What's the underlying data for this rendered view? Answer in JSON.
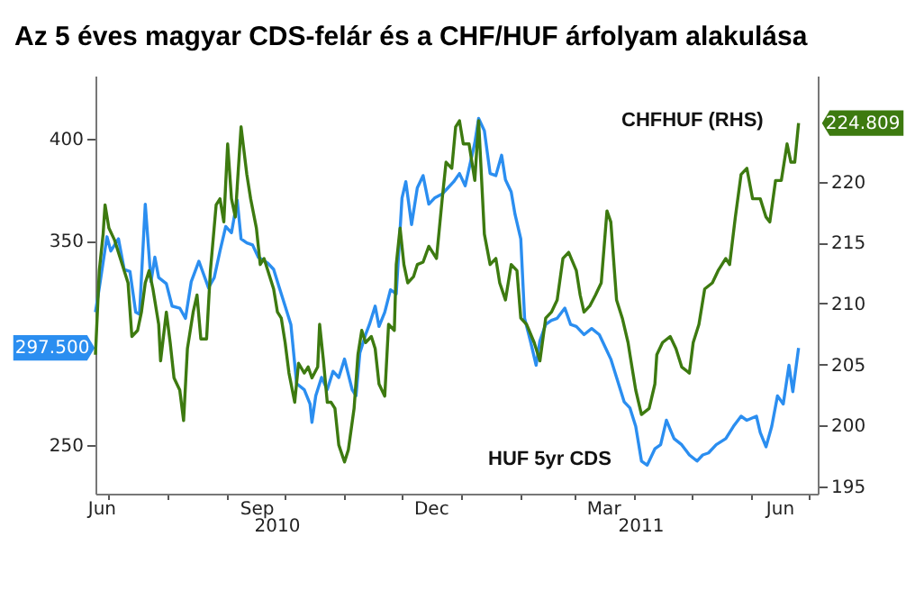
{
  "chart_data": {
    "type": "line",
    "title": "Az 5 éves magyar CDS-felár és a CHF/HUF árfolyam alakulása",
    "annotations": [
      "2010",
      "2011",
      "297.500",
      "224.809"
    ],
    "xlim": [
      "2010-06-24",
      "2011-07-06"
    ],
    "xticks": [
      {
        "value": "2010-06-27",
        "label": "Jun"
      },
      {
        "value": "2010-07-01",
        "label": null
      },
      {
        "value": "2010-08-01",
        "label": null
      },
      {
        "value": "2010-09-01",
        "label": null
      },
      {
        "value": "2010-09-16",
        "label": "Sep"
      },
      {
        "value": "2010-10-01",
        "label": null
      },
      {
        "value": "2010-11-01",
        "label": null
      },
      {
        "value": "2010-12-01",
        "label": null
      },
      {
        "value": "2010-12-16",
        "label": "Dec"
      },
      {
        "value": "2011-01-01",
        "label": null
      },
      {
        "value": "2011-02-01",
        "label": null
      },
      {
        "value": "2011-03-01",
        "label": null
      },
      {
        "value": "2011-03-16",
        "label": "Mar"
      },
      {
        "value": "2011-04-01",
        "label": null
      },
      {
        "value": "2011-05-01",
        "label": null
      },
      {
        "value": "2011-06-01",
        "label": null
      },
      {
        "value": "2011-06-16",
        "label": "Jun"
      },
      {
        "value": "2011-07-01",
        "label": null
      }
    ],
    "ylim": [
      226,
      431
    ],
    "yticks": [
      250,
      350,
      400
    ],
    "y2lim": [
      194.4,
      228.7
    ],
    "y2ticks": [
      195,
      200,
      205,
      210,
      215,
      220
    ],
    "series": [
      {
        "name": "HUF 5yr CDS",
        "color": "#2b8ef0",
        "axis": "y",
        "x": [
          "2010-06-24",
          "2010-06-26",
          "2010-06-30",
          "2010-07-02",
          "2010-07-06",
          "2010-07-09",
          "2010-07-12",
          "2010-07-15",
          "2010-07-17",
          "2010-07-20",
          "2010-07-23",
          "2010-07-25",
          "2010-07-27",
          "2010-07-31",
          "2010-08-03",
          "2010-08-07",
          "2010-08-10",
          "2010-08-13",
          "2010-08-17",
          "2010-08-22",
          "2010-08-25",
          "2010-08-28",
          "2010-08-31",
          "2010-09-03",
          "2010-09-06",
          "2010-09-08",
          "2010-09-11",
          "2010-09-14",
          "2010-09-17",
          "2010-09-22",
          "2010-09-25",
          "2010-09-28",
          "2010-10-01",
          "2010-10-04",
          "2010-10-07",
          "2010-10-11",
          "2010-10-14",
          "2010-10-15",
          "2010-10-17",
          "2010-10-20",
          "2010-10-23",
          "2010-10-26",
          "2010-10-29",
          "2010-11-01",
          "2010-11-05",
          "2010-11-07",
          "2010-11-09",
          "2010-11-12",
          "2010-11-14",
          "2010-11-17",
          "2010-11-19",
          "2010-11-22",
          "2010-11-25",
          "2010-11-28",
          "2010-12-01",
          "2010-12-03",
          "2010-12-06",
          "2010-12-09",
          "2010-12-12",
          "2010-12-15",
          "2010-12-18",
          "2010-12-22",
          "2010-12-25",
          "2010-12-28",
          "2010-12-31",
          "2011-01-03",
          "2011-01-08",
          "2011-01-10",
          "2011-01-13",
          "2011-01-16",
          "2011-01-19",
          "2011-01-22",
          "2011-01-24",
          "2011-01-27",
          "2011-01-29",
          "2011-02-01",
          "2011-02-03",
          "2011-02-06",
          "2011-02-09",
          "2011-02-11",
          "2011-02-14",
          "2011-02-17",
          "2011-02-20",
          "2011-02-24",
          "2011-02-27",
          "2011-03-02",
          "2011-03-06",
          "2011-03-10",
          "2011-03-14",
          "2011-03-17",
          "2011-03-20",
          "2011-03-23",
          "2011-03-27",
          "2011-03-30",
          "2011-04-02",
          "2011-04-05",
          "2011-04-08",
          "2011-04-12",
          "2011-04-15",
          "2011-04-18",
          "2011-04-22",
          "2011-04-26",
          "2011-04-30",
          "2011-05-04",
          "2011-05-07",
          "2011-05-10",
          "2011-05-14",
          "2011-05-19",
          "2011-05-23",
          "2011-05-27",
          "2011-05-30",
          "2011-06-04",
          "2011-06-06",
          "2011-06-09",
          "2011-06-12",
          "2011-06-15",
          "2011-06-18",
          "2011-06-21",
          "2011-06-23",
          "2011-06-26"
        ],
        "values": [
          315,
          327,
          352,
          345,
          351,
          336,
          335,
          315,
          314,
          368,
          330,
          342,
          332,
          329,
          318,
          317,
          312,
          330,
          340,
          327,
          332,
          345,
          357,
          354,
          370,
          351,
          349,
          348,
          342,
          339,
          336,
          327,
          318,
          309,
          280,
          277,
          270,
          261,
          274,
          283,
          277,
          286,
          283,
          292,
          277,
          274,
          295,
          304,
          309,
          318,
          308,
          315,
          326,
          324,
          371,
          379,
          358,
          376,
          382,
          368,
          371,
          373,
          376,
          379,
          383,
          377,
          398,
          410,
          404,
          383,
          382,
          392,
          380,
          374,
          363,
          351,
          312,
          301,
          289,
          301,
          309,
          311,
          312,
          317,
          309,
          308,
          304,
          307,
          304,
          298,
          292,
          283,
          271,
          268,
          259,
          242,
          240,
          248,
          250,
          262,
          253,
          250,
          245,
          242,
          245,
          246,
          250,
          253,
          259,
          264,
          262,
          264,
          256,
          249,
          259,
          274,
          270,
          289,
          276,
          297.5
        ]
      },
      {
        "name": "CHFHUF (RHS)",
        "color": "#3d7a10",
        "axis": "y2",
        "x": [
          "2010-06-24",
          "2010-06-26",
          "2010-06-28",
          "2010-06-29",
          "2010-07-01",
          "2010-07-04",
          "2010-07-06",
          "2010-07-09",
          "2010-07-11",
          "2010-07-13",
          "2010-07-16",
          "2010-07-18",
          "2010-07-20",
          "2010-07-22",
          "2010-07-24",
          "2010-07-27",
          "2010-07-28",
          "2010-07-31",
          "2010-08-02",
          "2010-08-04",
          "2010-08-07",
          "2010-08-09",
          "2010-08-11",
          "2010-08-14",
          "2010-08-16",
          "2010-08-18",
          "2010-08-21",
          "2010-08-23",
          "2010-08-26",
          "2010-08-28",
          "2010-08-30",
          "2010-09-01",
          "2010-09-03",
          "2010-09-05",
          "2010-09-06",
          "2010-09-08",
          "2010-09-11",
          "2010-09-13",
          "2010-09-16",
          "2010-09-18",
          "2010-09-20",
          "2010-09-23",
          "2010-09-25",
          "2010-09-27",
          "2010-09-29",
          "2010-10-01",
          "2010-10-03",
          "2010-10-06",
          "2010-10-08",
          "2010-10-11",
          "2010-10-13",
          "2010-10-15",
          "2010-10-18",
          "2010-10-19",
          "2010-10-21",
          "2010-10-23",
          "2010-10-25",
          "2010-10-27",
          "2010-10-29",
          "2010-11-01",
          "2010-11-03",
          "2010-11-06",
          "2010-11-08",
          "2010-11-10",
          "2010-11-12",
          "2010-11-15",
          "2010-11-17",
          "2010-11-19",
          "2010-11-22",
          "2010-11-24",
          "2010-11-27",
          "2010-11-28",
          "2010-11-30",
          "2010-12-02",
          "2010-12-04",
          "2010-12-07",
          "2010-12-09",
          "2010-12-12",
          "2010-12-15",
          "2010-12-17",
          "2010-12-19",
          "2010-12-22",
          "2010-12-24",
          "2010-12-27",
          "2010-12-29",
          "2010-12-31",
          "2011-01-02",
          "2011-01-05",
          "2011-01-08",
          "2011-01-10",
          "2011-01-13",
          "2011-01-16",
          "2011-01-19",
          "2011-01-21",
          "2011-01-24",
          "2011-01-27",
          "2011-01-30",
          "2011-02-01",
          "2011-02-04",
          "2011-02-08",
          "2011-02-11",
          "2011-02-14",
          "2011-02-17",
          "2011-02-20",
          "2011-02-23",
          "2011-02-26",
          "2011-03-02",
          "2011-03-04",
          "2011-03-06",
          "2011-03-09",
          "2011-03-12",
          "2011-03-15",
          "2011-03-18",
          "2011-03-20",
          "2011-03-23",
          "2011-03-26",
          "2011-03-29",
          "2011-03-30",
          "2011-04-02",
          "2011-04-05",
          "2011-04-09",
          "2011-04-12",
          "2011-04-13",
          "2011-04-16",
          "2011-04-20",
          "2011-04-23",
          "2011-04-26",
          "2011-04-30",
          "2011-05-02",
          "2011-05-05",
          "2011-05-08",
          "2011-05-12",
          "2011-05-15",
          "2011-05-19",
          "2011-05-21",
          "2011-05-24",
          "2011-05-27",
          "2011-05-30",
          "2011-06-02",
          "2011-06-06",
          "2011-06-09",
          "2011-06-11",
          "2011-06-14",
          "2011-06-17",
          "2011-06-20",
          "2011-06-22",
          "2011-06-24",
          "2011-06-26"
        ],
        "values": [
          205.8,
          212.7,
          215.7,
          218.1,
          216.2,
          215.2,
          214.2,
          212.7,
          211.7,
          207.3,
          207.8,
          209.3,
          211.7,
          212.7,
          211.2,
          208.3,
          205.3,
          209.3,
          206.8,
          203.9,
          202.9,
          200.4,
          206.3,
          209.3,
          210.7,
          207.1,
          207.1,
          212.7,
          218.1,
          218.6,
          216.7,
          223.1,
          218.6,
          217.1,
          219.6,
          224.5,
          220.6,
          218.6,
          216.2,
          213.2,
          213.7,
          212.2,
          211.2,
          209.3,
          208.8,
          206.8,
          204.3,
          201.9,
          205.1,
          204.3,
          204.8,
          203.9,
          204.8,
          208.3,
          205.3,
          201.9,
          201.9,
          201.4,
          198.4,
          197.0,
          198.0,
          201.4,
          205.8,
          207.8,
          206.8,
          207.3,
          206.3,
          203.4,
          202.4,
          208.3,
          207.8,
          213.2,
          216.2,
          213.2,
          211.7,
          212.2,
          213.2,
          213.4,
          214.7,
          214.2,
          213.7,
          218.6,
          221.6,
          221.1,
          224.5,
          225.0,
          223.1,
          223.1,
          220.1,
          225.0,
          215.7,
          213.2,
          213.7,
          211.7,
          210.3,
          213.2,
          212.7,
          208.8,
          208.3,
          206.8,
          205.3,
          208.8,
          209.3,
          210.3,
          213.7,
          214.2,
          212.7,
          210.7,
          209.3,
          209.8,
          210.7,
          211.7,
          217.6,
          216.7,
          210.3,
          208.8,
          206.8,
          205.8,
          202.9,
          200.9,
          201.4,
          203.4,
          205.8,
          206.8,
          207.3,
          206.3,
          204.8,
          204.3,
          206.8,
          208.3,
          211.2,
          211.7,
          212.7,
          213.7,
          213.2,
          217.1,
          220.6,
          221.1,
          218.6,
          218.6,
          217.1,
          216.7,
          220.1,
          220.1,
          223.1,
          221.6,
          221.6,
          224.809
        ]
      }
    ]
  }
}
